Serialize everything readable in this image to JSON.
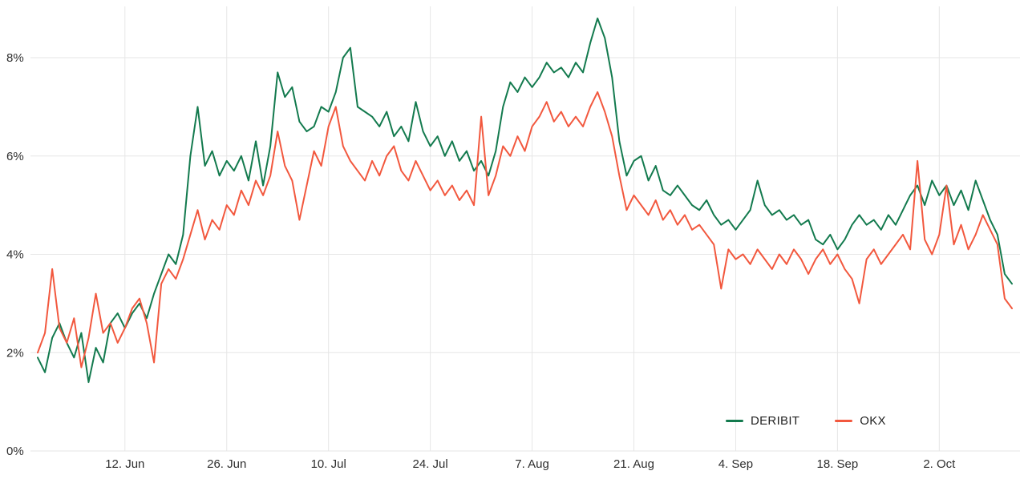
{
  "chart_data": {
    "type": "line",
    "title": "",
    "xlabel": "",
    "ylabel": "",
    "unit": "%",
    "grid": true,
    "legend_position": "bottom-right-inside",
    "background_color": "#ffffff",
    "gridline_color": "#e6e6e6",
    "tick_label_color": "#2f2f2f",
    "ylim": [
      0,
      9.2
    ],
    "y_tick_values": [
      0,
      2,
      4,
      6,
      8
    ],
    "y_tick_labels": [
      "0%",
      "2%",
      "4%",
      "6%",
      "8%"
    ],
    "x_range": [
      0,
      134
    ],
    "x_tick_positions": [
      12,
      26,
      40,
      54,
      68,
      82,
      96,
      110,
      124
    ],
    "x_tick_labels": [
      "12. Jun",
      "26. Jun",
      "10. Jul",
      "24. Jul",
      "7. Aug",
      "21. Aug",
      "4. Sep",
      "18. Sep",
      "2. Oct"
    ],
    "series": [
      {
        "name": "DERIBIT",
        "color": "#137a4e",
        "values": [
          1.9,
          1.6,
          2.3,
          2.6,
          2.2,
          1.9,
          2.4,
          1.4,
          2.1,
          1.8,
          2.6,
          2.8,
          2.5,
          2.8,
          3.0,
          2.7,
          3.2,
          3.6,
          4.0,
          3.8,
          4.4,
          6.0,
          7.0,
          5.8,
          6.1,
          5.6,
          5.9,
          5.7,
          6.0,
          5.5,
          6.3,
          5.4,
          6.2,
          7.7,
          7.2,
          7.4,
          6.7,
          6.5,
          6.6,
          7.0,
          6.9,
          7.3,
          8.0,
          8.2,
          7.0,
          6.9,
          6.8,
          6.6,
          6.9,
          6.4,
          6.6,
          6.3,
          7.1,
          6.5,
          6.2,
          6.4,
          6.0,
          6.3,
          5.9,
          6.1,
          5.7,
          5.9,
          5.6,
          6.1,
          7.0,
          7.5,
          7.3,
          7.6,
          7.4,
          7.6,
          7.9,
          7.7,
          7.8,
          7.6,
          7.9,
          7.7,
          8.3,
          8.8,
          8.4,
          7.6,
          6.3,
          5.6,
          5.9,
          6.0,
          5.5,
          5.8,
          5.3,
          5.2,
          5.4,
          5.2,
          5.0,
          4.9,
          5.1,
          4.8,
          4.6,
          4.7,
          4.5,
          4.7,
          4.9,
          5.5,
          5.0,
          4.8,
          4.9,
          4.7,
          4.8,
          4.6,
          4.7,
          4.3,
          4.2,
          4.4,
          4.1,
          4.3,
          4.6,
          4.8,
          4.6,
          4.7,
          4.5,
          4.8,
          4.6,
          4.9,
          5.2,
          5.4,
          5.0,
          5.5,
          5.2,
          5.4,
          5.0,
          5.3,
          4.9,
          5.5,
          5.1,
          4.7,
          4.4,
          3.6,
          3.4
        ]
      },
      {
        "name": "OKX",
        "color": "#f2583e",
        "values": [
          2.0,
          2.4,
          3.7,
          2.5,
          2.2,
          2.7,
          1.7,
          2.3,
          3.2,
          2.4,
          2.6,
          2.2,
          2.5,
          2.9,
          3.1,
          2.6,
          1.8,
          3.4,
          3.7,
          3.5,
          3.9,
          4.4,
          4.9,
          4.3,
          4.7,
          4.5,
          5.0,
          4.8,
          5.3,
          5.0,
          5.5,
          5.2,
          5.6,
          6.5,
          5.8,
          5.5,
          4.7,
          5.4,
          6.1,
          5.8,
          6.6,
          7.0,
          6.2,
          5.9,
          5.7,
          5.5,
          5.9,
          5.6,
          6.0,
          6.2,
          5.7,
          5.5,
          5.9,
          5.6,
          5.3,
          5.5,
          5.2,
          5.4,
          5.1,
          5.3,
          5.0,
          6.8,
          5.2,
          5.6,
          6.2,
          6.0,
          6.4,
          6.1,
          6.6,
          6.8,
          7.1,
          6.7,
          6.9,
          6.6,
          6.8,
          6.6,
          7.0,
          7.3,
          6.9,
          6.4,
          5.6,
          4.9,
          5.2,
          5.0,
          4.8,
          5.1,
          4.7,
          4.9,
          4.6,
          4.8,
          4.5,
          4.6,
          4.4,
          4.2,
          3.3,
          4.1,
          3.9,
          4.0,
          3.8,
          4.1,
          3.9,
          3.7,
          4.0,
          3.8,
          4.1,
          3.9,
          3.6,
          3.9,
          4.1,
          3.8,
          4.0,
          3.7,
          3.5,
          3.0,
          3.9,
          4.1,
          3.8,
          4.0,
          4.2,
          4.4,
          4.1,
          5.9,
          4.3,
          4.0,
          4.4,
          5.4,
          4.2,
          4.6,
          4.1,
          4.4,
          4.8,
          4.5,
          4.2,
          3.1,
          2.9
        ]
      }
    ]
  }
}
